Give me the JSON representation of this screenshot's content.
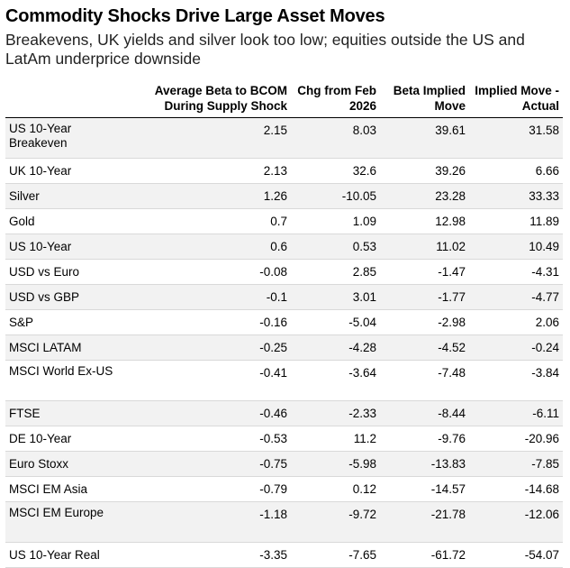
{
  "title": "Commodity Shocks Drive Large Asset Moves",
  "subtitle": "Breakevens, UK yields and silver look too low; equities outside the US and LatAm underprice downside",
  "columns": [
    "",
    "Average Beta to BCOM During Supply Shock",
    "Chg from Feb 2026",
    "Beta Implied Move",
    "Implied Move - Actual"
  ],
  "rows": [
    {
      "name": "US 10-Year Breakeven",
      "beta": "2.15",
      "chg": "8.03",
      "implied": "39.61",
      "diff": "31.58"
    },
    {
      "name": "UK 10-Year",
      "beta": "2.13",
      "chg": "32.6",
      "implied": "39.26",
      "diff": "6.66"
    },
    {
      "name": "Silver",
      "beta": "1.26",
      "chg": "-10.05",
      "implied": "23.28",
      "diff": "33.33"
    },
    {
      "name": "Gold",
      "beta": "0.7",
      "chg": "1.09",
      "implied": "12.98",
      "diff": "11.89"
    },
    {
      "name": "US 10-Year",
      "beta": "0.6",
      "chg": "0.53",
      "implied": "11.02",
      "diff": "10.49"
    },
    {
      "name": "USD vs Euro",
      "beta": "-0.08",
      "chg": "2.85",
      "implied": "-1.47",
      "diff": "-4.31"
    },
    {
      "name": "USD vs GBP",
      "beta": "-0.1",
      "chg": "3.01",
      "implied": "-1.77",
      "diff": "-4.77"
    },
    {
      "name": "S&P",
      "beta": "-0.16",
      "chg": "-5.04",
      "implied": "-2.98",
      "diff": "2.06"
    },
    {
      "name": "MSCI LATAM",
      "beta": "-0.25",
      "chg": "-4.28",
      "implied": "-4.52",
      "diff": "-0.24"
    },
    {
      "name": "MSCI World Ex-US",
      "beta": "-0.41",
      "chg": "-3.64",
      "implied": "-7.48",
      "diff": "-3.84"
    },
    {
      "name": "FTSE",
      "beta": "-0.46",
      "chg": "-2.33",
      "implied": "-8.44",
      "diff": "-6.11"
    },
    {
      "name": "DE 10-Year",
      "beta": "-0.53",
      "chg": "11.2",
      "implied": "-9.76",
      "diff": "-20.96"
    },
    {
      "name": "Euro Stoxx",
      "beta": "-0.75",
      "chg": "-5.98",
      "implied": "-13.83",
      "diff": "-7.85"
    },
    {
      "name": "MSCI EM Asia",
      "beta": "-0.79",
      "chg": "0.12",
      "implied": "-14.57",
      "diff": "-14.68"
    },
    {
      "name": "MSCI EM Europe",
      "beta": "-1.18",
      "chg": "-9.72",
      "implied": "-21.78",
      "diff": "-12.06"
    },
    {
      "name": "US 10-Year Real",
      "beta": "-3.35",
      "chg": "-7.65",
      "implied": "-61.72",
      "diff": "-54.07"
    }
  ]
}
